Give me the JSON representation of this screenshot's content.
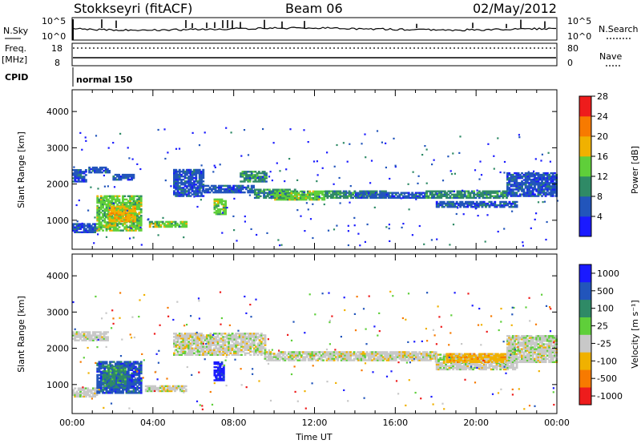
{
  "header": {
    "radar": "Stokkseyri (fitACF)",
    "beam": "Beam 06",
    "date": "02/May/2012"
  },
  "params": {
    "nsky_label": "N.Sky",
    "nsearch_label": "N.Search",
    "freq_label": "Freq.",
    "freq_unit": "[MHz]",
    "nave_label": "Nave",
    "cpid_label": "CPID",
    "cpid_value": "normal 150",
    "noise_left_ticks": [
      "10^5",
      "10^0"
    ],
    "noise_right_ticks": [
      "10^5",
      "10^0"
    ],
    "freq_ticks": [
      "18",
      "8"
    ],
    "nave_ticks": [
      "80",
      "0"
    ]
  },
  "chart_data": [
    {
      "type": "heatmap",
      "title": "",
      "xlabel": "",
      "ylabel": "Slant Range [km]",
      "xlim": [
        0,
        24
      ],
      "ylim": [
        200,
        4600
      ],
      "yticks": [
        1000,
        2000,
        3000,
        4000
      ],
      "colorbar": {
        "label": "Power [dB]",
        "ticks": [
          "4",
          "8",
          "12",
          "16",
          "20",
          "24",
          "28"
        ],
        "colors": [
          "#1a1aff",
          "#2255bb",
          "#2f8a66",
          "#5fcf3a",
          "#f0b100",
          "#f77a00",
          "#ee1c1c"
        ]
      },
      "bands": [
        {
          "t0": 0.0,
          "t1": 0.7,
          "r0": 2050,
          "r1": 2400,
          "level": 1
        },
        {
          "t0": 0.8,
          "t1": 1.8,
          "r0": 2300,
          "r1": 2450,
          "level": 1
        },
        {
          "t0": 2.0,
          "t1": 3.0,
          "r0": 2100,
          "r1": 2250,
          "level": 1
        },
        {
          "t0": 0.0,
          "t1": 1.2,
          "r0": 650,
          "r1": 900,
          "level": 1
        },
        {
          "t0": 1.2,
          "t1": 3.4,
          "r0": 700,
          "r1": 1650,
          "level": 3
        },
        {
          "t0": 1.8,
          "t1": 3.1,
          "r0": 950,
          "r1": 1400,
          "level": 4
        },
        {
          "t0": 3.8,
          "t1": 5.6,
          "r0": 800,
          "r1": 950,
          "level": 3
        },
        {
          "t0": 7.0,
          "t1": 7.6,
          "r0": 1150,
          "r1": 1600,
          "level": 3
        },
        {
          "t0": 5.0,
          "t1": 6.5,
          "r0": 1650,
          "r1": 2400,
          "level": 1
        },
        {
          "t0": 6.5,
          "t1": 9.0,
          "r0": 1750,
          "r1": 1950,
          "level": 1
        },
        {
          "t0": 8.3,
          "t1": 9.6,
          "r0": 2050,
          "r1": 2350,
          "level": 2
        },
        {
          "t0": 9.0,
          "t1": 11.0,
          "r0": 1600,
          "r1": 1850,
          "level": 2
        },
        {
          "t0": 10.0,
          "t1": 12.5,
          "r0": 1550,
          "r1": 1800,
          "level": 3
        },
        {
          "t0": 12.5,
          "t1": 15.5,
          "r0": 1600,
          "r1": 1800,
          "level": 2
        },
        {
          "t0": 14.0,
          "t1": 17.5,
          "r0": 1600,
          "r1": 1750,
          "level": 1
        },
        {
          "t0": 17.5,
          "t1": 21.5,
          "r0": 1600,
          "r1": 1800,
          "level": 2
        },
        {
          "t0": 18.0,
          "t1": 22.0,
          "r0": 1350,
          "r1": 1500,
          "level": 1
        },
        {
          "t0": 21.5,
          "t1": 24.0,
          "r0": 1650,
          "r1": 2300,
          "level": 1
        }
      ]
    },
    {
      "type": "heatmap",
      "title": "",
      "xlabel": "Time UT",
      "ylabel": "Slant Range [km]",
      "xlim": [
        0,
        24
      ],
      "ylim": [
        200,
        4600
      ],
      "xticks": [
        "00:00",
        "04:00",
        "08:00",
        "12:00",
        "16:00",
        "20:00",
        "00:00"
      ],
      "yticks": [
        1000,
        2000,
        3000,
        4000
      ],
      "colorbar": {
        "label": "Velocity [m s⁻¹]",
        "ticks": [
          "1000",
          "500",
          "100",
          "25",
          "-25",
          "-100",
          "-500",
          "-1000"
        ],
        "colors": [
          "#1a1aff",
          "#2255bb",
          "#2f8a66",
          "#5fcf3a",
          "#c8c8c8",
          "#f0b100",
          "#f77a00",
          "#ee1c1c"
        ]
      },
      "bands": [
        {
          "t0": 0.0,
          "t1": 1.8,
          "r0": 2200,
          "r1": 2450,
          "level": 4
        },
        {
          "t0": 0.0,
          "t1": 1.2,
          "r0": 650,
          "r1": 900,
          "level": 4
        },
        {
          "t0": 1.2,
          "t1": 3.4,
          "r0": 750,
          "r1": 1650,
          "level": 1
        },
        {
          "t0": 1.5,
          "t1": 2.6,
          "r0": 900,
          "r1": 1500,
          "level": 2
        },
        {
          "t0": 3.6,
          "t1": 5.6,
          "r0": 800,
          "r1": 950,
          "level": 4
        },
        {
          "t0": 7.0,
          "t1": 7.5,
          "r0": 1100,
          "r1": 1600,
          "level": 0
        },
        {
          "t0": 5.0,
          "t1": 9.5,
          "r0": 1800,
          "r1": 2400,
          "level": 4
        },
        {
          "t0": 9.5,
          "t1": 18.0,
          "r0": 1650,
          "r1": 1900,
          "level": 4
        },
        {
          "t0": 18.0,
          "t1": 22.0,
          "r0": 1400,
          "r1": 1850,
          "level": 4
        },
        {
          "t0": 18.5,
          "t1": 21.5,
          "r0": 1600,
          "r1": 1850,
          "level": 5
        },
        {
          "t0": 21.5,
          "t1": 24.0,
          "r0": 1600,
          "r1": 2350,
          "level": 4
        }
      ]
    }
  ]
}
